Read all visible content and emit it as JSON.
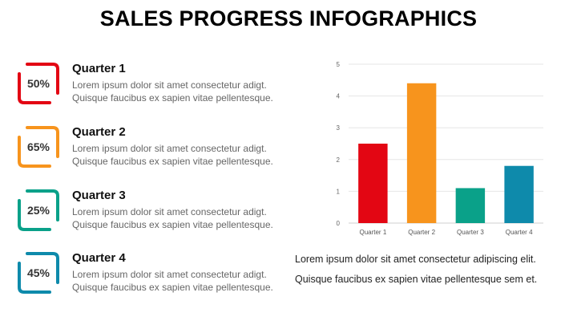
{
  "title": "SALES PROGRESS INFOGRAPHICS",
  "quarters": [
    {
      "percent": "50%",
      "title": "Quarter 1",
      "line1": "Lorem ipsum dolor sit amet consectetur adigt.",
      "line2": "Quisque faucibus ex sapien vitae pellentesque.",
      "color": "#e30613"
    },
    {
      "percent": "65%",
      "title": "Quarter 2",
      "line1": "Lorem ipsum dolor sit amet consectetur adigt.",
      "line2": "Quisque faucibus ex sapien vitae pellentesque.",
      "color": "#f7941d"
    },
    {
      "percent": "25%",
      "title": "Quarter 3",
      "line1": "Lorem ipsum dolor sit amet consectetur adigt.",
      "line2": "Quisque faucibus ex sapien vitae pellentesque.",
      "color": "#0aa189"
    },
    {
      "percent": "45%",
      "title": "Quarter 4",
      "line1": "Lorem ipsum dolor sit amet consectetur adigt.",
      "line2": "Quisque faucibus ex sapien vitae pellentesque.",
      "color": "#0e8aab"
    }
  ],
  "chart_description": {
    "line1": "Lorem ipsum dolor sit amet consectetur adipiscing elit.",
    "line2": "Quisque faucibus ex sapien vitae pellentesque sem et."
  },
  "chart_data": {
    "type": "bar",
    "categories": [
      "Quarter 1",
      "Quarter 2",
      "Quarter 3",
      "Quarter 4"
    ],
    "values": [
      2.5,
      4.4,
      1.1,
      1.8
    ],
    "colors": [
      "#e30613",
      "#f7941d",
      "#0aa189",
      "#0e8aab"
    ],
    "yticks": [
      "0",
      "1",
      "2",
      "3",
      "4",
      "5"
    ],
    "ylim": [
      0,
      5
    ],
    "grid": true,
    "legend": false
  }
}
